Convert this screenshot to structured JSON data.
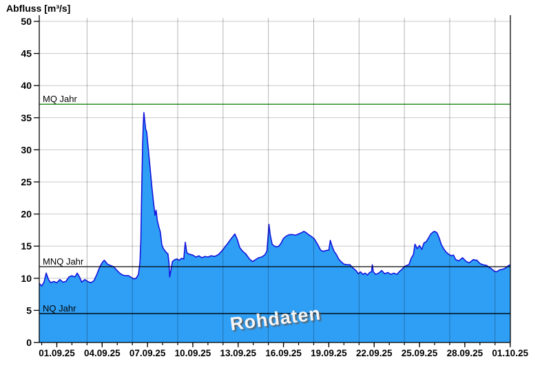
{
  "title": "Abfluss [m³/s]",
  "watermark": "Rohdaten",
  "colors": {
    "area_fill": "#2f9ff5",
    "area_stroke": "#1414dd",
    "hgrid": "#c8c8c8",
    "vgrid": "#b6b6b6",
    "axis": "#000000",
    "mq_line": "#007700",
    "ref_line": "#000000",
    "label_text": "#000000"
  },
  "chart_data": {
    "type": "area",
    "title": "Abfluss [m³/s]",
    "ylabel": "Abfluss [m³/s]",
    "ylim": [
      0,
      50
    ],
    "y_ticks": [
      0,
      5,
      10,
      15,
      20,
      25,
      30,
      35,
      40,
      45,
      50
    ],
    "x_tick_labels": [
      "01.09.25",
      "04.09.25",
      "07.09.25",
      "10.09.25",
      "13.09.25",
      "16.09.25",
      "19.09.25",
      "22.09.25",
      "25.09.25",
      "28.09.25",
      "01.10.25"
    ],
    "x_major_step_days": 3,
    "x_domain_days": [
      -1.16,
      30
    ],
    "vgrid_days": [
      2,
      5,
      8,
      11,
      14,
      17,
      20,
      23,
      26,
      29
    ],
    "grid": "on",
    "legend": "none",
    "reference_lines": [
      {
        "label": "MQ Jahr",
        "value": 37.1,
        "color": "#007700"
      },
      {
        "label": "MNQ Jahr",
        "value": 11.8,
        "color": "#000000"
      },
      {
        "label": "NQ Jahr",
        "value": 4.5,
        "color": "#000000"
      }
    ],
    "series": [
      {
        "name": "Rohdaten",
        "points": [
          [
            -1.16,
            9.2
          ],
          [
            -1.0,
            8.8
          ],
          [
            -0.85,
            9.4
          ],
          [
            -0.7,
            10.8
          ],
          [
            -0.55,
            9.8
          ],
          [
            -0.4,
            9.3
          ],
          [
            -0.2,
            9.5
          ],
          [
            0,
            9.3
          ],
          [
            0.2,
            9.8
          ],
          [
            0.4,
            9.4
          ],
          [
            0.6,
            9.5
          ],
          [
            0.8,
            10.2
          ],
          [
            1.0,
            10.4
          ],
          [
            1.2,
            10.2
          ],
          [
            1.35,
            10.8
          ],
          [
            1.5,
            10.2
          ],
          [
            1.65,
            9.4
          ],
          [
            1.85,
            9.8
          ],
          [
            2.05,
            9.5
          ],
          [
            2.25,
            9.3
          ],
          [
            2.45,
            9.6
          ],
          [
            2.65,
            10.6
          ],
          [
            2.85,
            11.8
          ],
          [
            3.05,
            12.6
          ],
          [
            3.15,
            12.8
          ],
          [
            3.35,
            12.2
          ],
          [
            3.55,
            12.0
          ],
          [
            3.75,
            11.8
          ],
          [
            3.95,
            11.3
          ],
          [
            4.15,
            10.8
          ],
          [
            4.35,
            10.5
          ],
          [
            4.55,
            10.4
          ],
          [
            4.75,
            10.4
          ],
          [
            4.95,
            10.1
          ],
          [
            5.1,
            9.9
          ],
          [
            5.25,
            10.0
          ],
          [
            5.4,
            10.6
          ],
          [
            5.5,
            12.5
          ],
          [
            5.56,
            16.0
          ],
          [
            5.62,
            24.0
          ],
          [
            5.68,
            31.0
          ],
          [
            5.72,
            34.0
          ],
          [
            5.76,
            35.8
          ],
          [
            5.82,
            34.5
          ],
          [
            5.88,
            33.2
          ],
          [
            5.95,
            32.8
          ],
          [
            6.0,
            31.5
          ],
          [
            6.1,
            29.0
          ],
          [
            6.2,
            26.5
          ],
          [
            6.3,
            24.0
          ],
          [
            6.4,
            21.8
          ],
          [
            6.5,
            19.8
          ],
          [
            6.57,
            20.6
          ],
          [
            6.65,
            19.0
          ],
          [
            6.75,
            18.0
          ],
          [
            6.85,
            17.2
          ],
          [
            6.95,
            15.2
          ],
          [
            7.05,
            14.6
          ],
          [
            7.15,
            14.3
          ],
          [
            7.25,
            14.0
          ],
          [
            7.35,
            13.8
          ],
          [
            7.42,
            12.5
          ],
          [
            7.47,
            10.2
          ],
          [
            7.55,
            11.2
          ],
          [
            7.65,
            12.6
          ],
          [
            7.8,
            12.9
          ],
          [
            7.95,
            13.0
          ],
          [
            8.1,
            12.8
          ],
          [
            8.25,
            13.1
          ],
          [
            8.4,
            13.0
          ],
          [
            8.5,
            15.6
          ],
          [
            8.6,
            14.0
          ],
          [
            8.7,
            13.8
          ],
          [
            8.85,
            13.7
          ],
          [
            9.0,
            13.6
          ],
          [
            9.2,
            13.3
          ],
          [
            9.4,
            13.5
          ],
          [
            9.6,
            13.2
          ],
          [
            9.8,
            13.4
          ],
          [
            10.0,
            13.3
          ],
          [
            10.2,
            13.5
          ],
          [
            10.45,
            13.4
          ],
          [
            10.7,
            13.7
          ],
          [
            10.9,
            14.2
          ],
          [
            11.1,
            14.8
          ],
          [
            11.3,
            15.4
          ],
          [
            11.55,
            16.2
          ],
          [
            11.78,
            16.9
          ],
          [
            11.95,
            16.0
          ],
          [
            12.1,
            14.8
          ],
          [
            12.3,
            14.2
          ],
          [
            12.5,
            13.8
          ],
          [
            12.75,
            13.0
          ],
          [
            12.95,
            12.6
          ],
          [
            13.15,
            12.9
          ],
          [
            13.35,
            13.2
          ],
          [
            13.55,
            13.3
          ],
          [
            13.75,
            13.6
          ],
          [
            13.9,
            14.2
          ],
          [
            13.98,
            16.5
          ],
          [
            14.04,
            18.4
          ],
          [
            14.12,
            16.8
          ],
          [
            14.25,
            15.3
          ],
          [
            14.4,
            15.0
          ],
          [
            14.55,
            14.9
          ],
          [
            14.7,
            15.0
          ],
          [
            14.85,
            15.5
          ],
          [
            15.0,
            16.2
          ],
          [
            15.2,
            16.6
          ],
          [
            15.4,
            16.8
          ],
          [
            15.6,
            16.8
          ],
          [
            15.8,
            16.7
          ],
          [
            16.0,
            16.9
          ],
          [
            16.2,
            17.1
          ],
          [
            16.35,
            17.3
          ],
          [
            16.5,
            17.1
          ],
          [
            16.65,
            16.8
          ],
          [
            16.85,
            16.5
          ],
          [
            17.05,
            16.1
          ],
          [
            17.25,
            15.3
          ],
          [
            17.45,
            14.4
          ],
          [
            17.6,
            14.2
          ],
          [
            17.8,
            14.3
          ],
          [
            18.0,
            14.4
          ],
          [
            18.1,
            15.9
          ],
          [
            18.2,
            15.1
          ],
          [
            18.35,
            14.2
          ],
          [
            18.5,
            13.7
          ],
          [
            18.65,
            13.0
          ],
          [
            18.8,
            12.6
          ],
          [
            19.0,
            12.2
          ],
          [
            19.2,
            12.1
          ],
          [
            19.4,
            12.1
          ],
          [
            19.6,
            11.6
          ],
          [
            19.8,
            11.2
          ],
          [
            19.95,
            10.7
          ],
          [
            20.1,
            11.0
          ],
          [
            20.25,
            10.6
          ],
          [
            20.4,
            10.8
          ],
          [
            20.55,
            10.5
          ],
          [
            20.7,
            10.9
          ],
          [
            20.82,
            11.0
          ],
          [
            20.88,
            12.1
          ],
          [
            20.95,
            11.0
          ],
          [
            21.1,
            10.6
          ],
          [
            21.3,
            10.8
          ],
          [
            21.5,
            11.2
          ],
          [
            21.7,
            10.7
          ],
          [
            21.9,
            10.9
          ],
          [
            22.1,
            10.6
          ],
          [
            22.3,
            10.8
          ],
          [
            22.5,
            10.6
          ],
          [
            22.7,
            11.1
          ],
          [
            22.85,
            11.4
          ],
          [
            23.0,
            11.8
          ],
          [
            23.15,
            12.0
          ],
          [
            23.3,
            12.1
          ],
          [
            23.45,
            13.1
          ],
          [
            23.6,
            13.7
          ],
          [
            23.7,
            15.3
          ],
          [
            23.85,
            14.6
          ],
          [
            24.0,
            15.1
          ],
          [
            24.15,
            14.5
          ],
          [
            24.3,
            15.5
          ],
          [
            24.45,
            15.7
          ],
          [
            24.6,
            16.3
          ],
          [
            24.75,
            16.9
          ],
          [
            24.9,
            17.2
          ],
          [
            25.0,
            17.3
          ],
          [
            25.15,
            17.1
          ],
          [
            25.3,
            16.3
          ],
          [
            25.45,
            15.2
          ],
          [
            25.6,
            14.6
          ],
          [
            25.75,
            14.1
          ],
          [
            25.9,
            13.8
          ],
          [
            26.1,
            13.5
          ],
          [
            26.25,
            13.6
          ],
          [
            26.4,
            12.9
          ],
          [
            26.6,
            12.7
          ],
          [
            26.85,
            13.2
          ],
          [
            27.1,
            12.6
          ],
          [
            27.3,
            12.4
          ],
          [
            27.55,
            12.9
          ],
          [
            27.8,
            12.8
          ],
          [
            28.0,
            12.3
          ],
          [
            28.2,
            12.1
          ],
          [
            28.45,
            12.0
          ],
          [
            28.6,
            11.7
          ],
          [
            28.75,
            11.5
          ],
          [
            28.95,
            11.1
          ],
          [
            29.1,
            11.0
          ],
          [
            29.3,
            11.3
          ],
          [
            29.5,
            11.4
          ],
          [
            29.7,
            11.6
          ],
          [
            29.85,
            11.9
          ],
          [
            30.0,
            12.1
          ]
        ]
      }
    ]
  }
}
